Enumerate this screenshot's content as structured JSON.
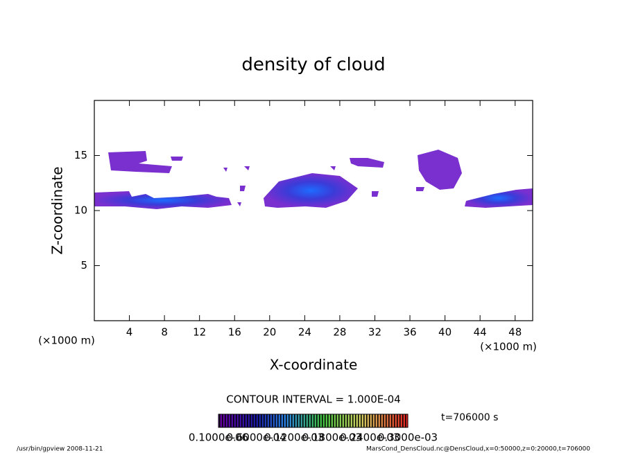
{
  "chart_data": {
    "type": "contour",
    "title": "density of cloud",
    "x_label": "X-coordinate",
    "y_label": "Z-coordinate",
    "x_unit": "(×1000 m)",
    "y_unit": "(×1000 m)",
    "xlim": [
      0,
      50
    ],
    "xticks": [
      4,
      8,
      12,
      16,
      20,
      24,
      28,
      32,
      36,
      40,
      44,
      48
    ],
    "ylim": [
      0,
      20
    ],
    "yticks": [
      5,
      10,
      15
    ],
    "contour_interval": "CONTOUR INTERVAL = 1.000E-04",
    "time": "t=706000 s",
    "colorbar_labels": [
      "0.1000e-06",
      "0.6000e-04",
      "0.1200e-03",
      "0.1800e-03",
      "0.2400e-03",
      "0.3000e-03"
    ],
    "footer_left": "/usr/bin/gpview  2008-11-21",
    "footer_right": "MarsCond_DensCloud.nc@DensCloud,x=0:50000,z=0:20000,t=706000"
  }
}
